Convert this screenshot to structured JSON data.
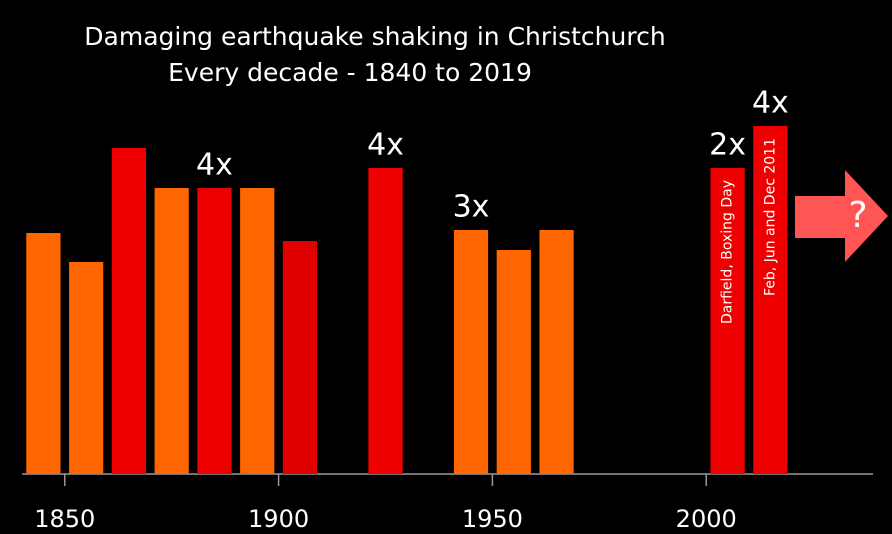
{
  "chart_data": {
    "type": "bar",
    "title": [
      "Damaging earthquake shaking in Christchurch",
      "Every decade - 1840 to 2019"
    ],
    "x": [
      1845,
      1855,
      1865,
      1875,
      1885,
      1895,
      1905,
      1925,
      1945,
      1955,
      1965,
      2005,
      2015
    ],
    "values": [
      241,
      212,
      326,
      286,
      286,
      286,
      233,
      306,
      244,
      224,
      244,
      306,
      348
    ],
    "colors": [
      "#ff6600",
      "#ff6600",
      "#ee0000",
      "#ff6600",
      "#ee0000",
      "#ff6600",
      "#e00000",
      "#ee0000",
      "#ff6600",
      "#ff6600",
      "#ff6600",
      "#ee0000",
      "#ee0000"
    ],
    "labels": [
      null,
      null,
      null,
      null,
      "4x",
      null,
      null,
      "4x",
      "3x",
      null,
      null,
      "2x",
      "4x"
    ],
    "notes": [
      null,
      null,
      null,
      null,
      null,
      null,
      null,
      null,
      null,
      null,
      null,
      "Darfield, Boxing Day",
      "Feb, Jun and Dec 2011"
    ],
    "bar_width": 8,
    "xlim": [
      1840,
      2039
    ],
    "xticks": [
      1850,
      1900,
      1950,
      2000
    ],
    "ylim": [
      0,
      350
    ],
    "arrow_label": "?"
  }
}
